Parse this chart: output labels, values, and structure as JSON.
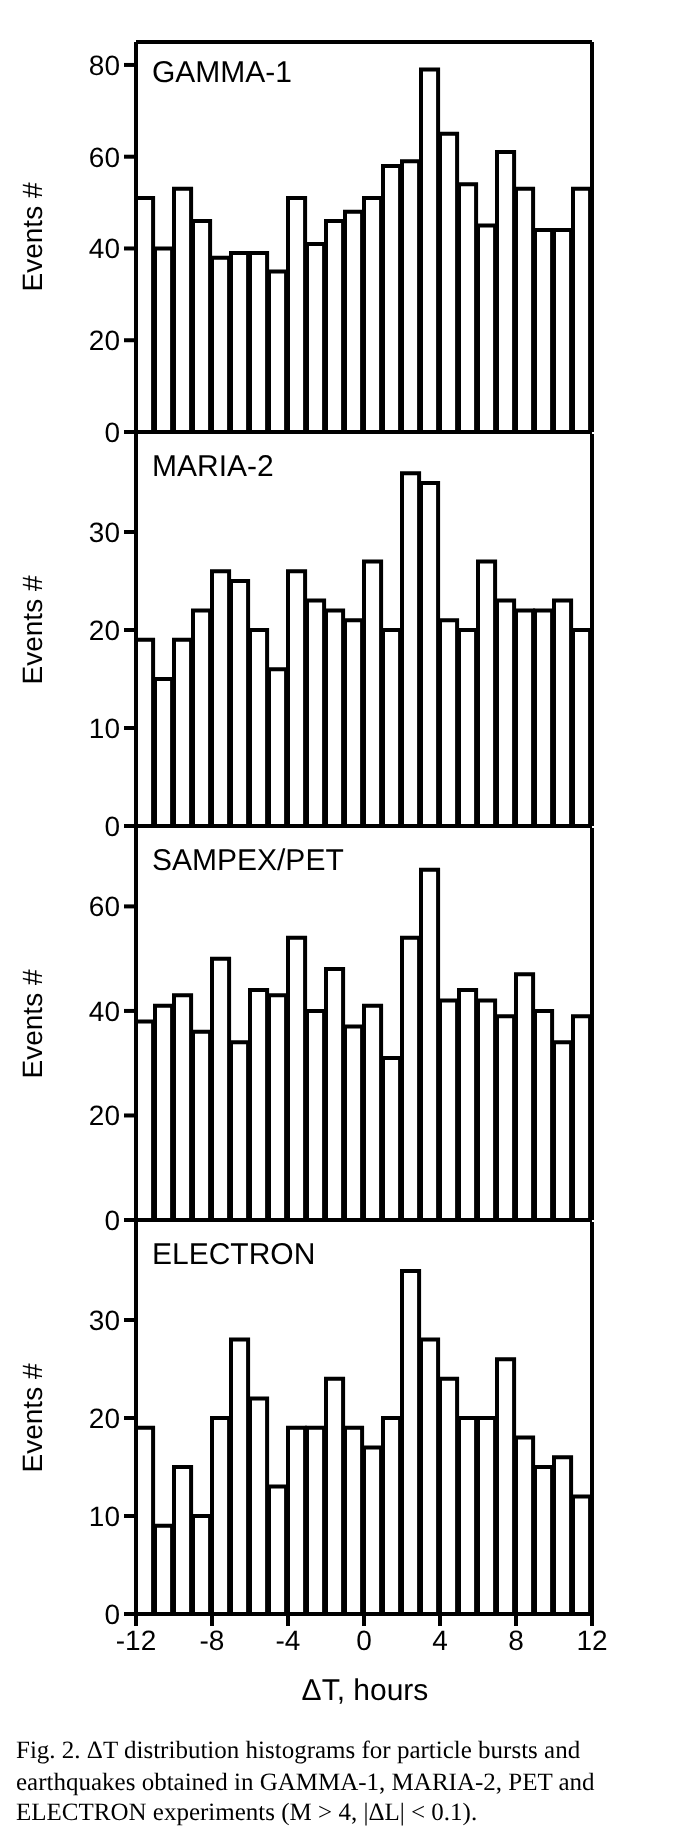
{
  "chart_data": [
    {
      "type": "histogram",
      "ylabel": "Events #",
      "annotations": [
        "GAMMA-1"
      ],
      "bins": [
        -12,
        -11,
        -10,
        -9,
        -8,
        -7,
        -6,
        -5,
        -4,
        -3,
        -2,
        -1,
        0,
        1,
        2,
        3,
        4,
        5,
        6,
        7,
        8,
        9,
        10,
        11,
        12
      ],
      "values": [
        51,
        40,
        53,
        46,
        38,
        39,
        39,
        35,
        51,
        41,
        46,
        48,
        51,
        58,
        59,
        79,
        65,
        54,
        45,
        61,
        53,
        44,
        44,
        53
      ],
      "color": "#000000",
      "xlim": [
        -12,
        12
      ],
      "xticks": [
        -12,
        -8,
        -4,
        0,
        4,
        8,
        12
      ],
      "ylim": [
        0,
        85
      ],
      "yticks": [
        0,
        20,
        40,
        60,
        80
      ],
      "tick_labels": "y"
    },
    {
      "type": "histogram",
      "ylabel": "Events #",
      "annotations": [
        "MARIA-2"
      ],
      "bins": [
        -12,
        -11,
        -10,
        -9,
        -8,
        -7,
        -6,
        -5,
        -4,
        -3,
        -2,
        -1,
        0,
        1,
        2,
        3,
        4,
        5,
        6,
        7,
        8,
        9,
        10,
        11,
        12
      ],
      "values": [
        19,
        15,
        19,
        22,
        26,
        25,
        20,
        16,
        26,
        23,
        22,
        21,
        27,
        20,
        36,
        35,
        21,
        20,
        27,
        23,
        22,
        22,
        23,
        20
      ],
      "color": "#000000",
      "xlim": [
        -12,
        12
      ],
      "xticks": [
        -12,
        -8,
        -4,
        0,
        4,
        8,
        12
      ],
      "ylim": [
        0,
        40
      ],
      "yticks": [
        0,
        10,
        20,
        30
      ],
      "tick_labels": "y"
    },
    {
      "type": "histogram",
      "ylabel": "Events #",
      "annotations": [
        "SAMPEX/PET"
      ],
      "bins": [
        -12,
        -11,
        -10,
        -9,
        -8,
        -7,
        -6,
        -5,
        -4,
        -3,
        -2,
        -1,
        0,
        1,
        2,
        3,
        4,
        5,
        6,
        7,
        8,
        9,
        10,
        11,
        12
      ],
      "values": [
        38,
        41,
        43,
        36,
        50,
        34,
        44,
        43,
        54,
        40,
        48,
        37,
        41,
        31,
        54,
        67,
        42,
        44,
        42,
        39,
        47,
        40,
        34,
        39
      ],
      "color": "#000000",
      "xlim": [
        -12,
        12
      ],
      "xticks": [
        -12,
        -8,
        -4,
        0,
        4,
        8,
        12
      ],
      "ylim": [
        0,
        75
      ],
      "yticks": [
        0,
        20,
        40,
        60
      ],
      "tick_labels": "y"
    },
    {
      "type": "histogram",
      "ylabel": "Events #",
      "xlabel": "ΔT, hours",
      "annotations": [
        "ELECTRON",
        "Fig. 2.  ΔT distribution histograms for particle bursts and earthquakes obtained in GAMMA-1, MARIA-2, PET and ELECTRON experiments (M > 4, |ΔL| < 0.1)."
      ],
      "bins": [
        -12,
        -11,
        -10,
        -9,
        -8,
        -7,
        -6,
        -5,
        -4,
        -3,
        -2,
        -1,
        0,
        1,
        2,
        3,
        4,
        5,
        6,
        7,
        8,
        9,
        10,
        11,
        12
      ],
      "values": [
        19,
        9,
        15,
        10,
        20,
        28,
        22,
        13,
        19,
        19,
        24,
        19,
        17,
        20,
        35,
        28,
        24,
        20,
        20,
        26,
        18,
        15,
        16,
        12
      ],
      "color": "#000000",
      "xlim": [
        -12,
        12
      ],
      "xticks": [
        -12,
        -8,
        -4,
        0,
        4,
        8,
        12
      ],
      "ylim": [
        0,
        40
      ],
      "yticks": [
        0,
        10,
        20,
        30
      ]
    }
  ]
}
